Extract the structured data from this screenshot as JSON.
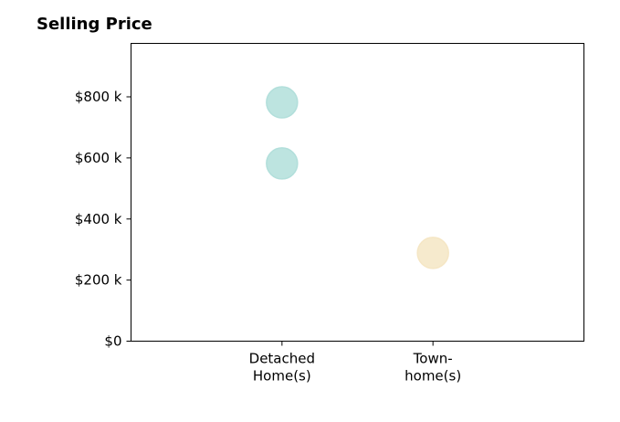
{
  "chart_data": {
    "type": "scatter",
    "title": "Selling Price",
    "xlabel": "",
    "ylabel": "",
    "categories": [
      [
        "Detached",
        "Home(s)"
      ],
      [
        "Town-",
        "home(s)"
      ]
    ],
    "x_range": [
      0,
      3
    ],
    "ylim": [
      0,
      975000
    ],
    "y_ticks": [
      {
        "value": 0,
        "label": "$0"
      },
      {
        "value": 200000,
        "label": "$200 k"
      },
      {
        "value": 400000,
        "label": "$400 k"
      },
      {
        "value": 600000,
        "label": "$600 k"
      },
      {
        "value": 800000,
        "label": "$800 k"
      }
    ],
    "points": [
      {
        "category_index": 0,
        "value": 782000,
        "color": "#b2dfdb"
      },
      {
        "category_index": 0,
        "value": 582000,
        "color": "#b2dfdb"
      },
      {
        "category_index": 1,
        "value": 289000,
        "color": "#f5e6c4"
      }
    ],
    "grid": false,
    "legend": "none"
  }
}
